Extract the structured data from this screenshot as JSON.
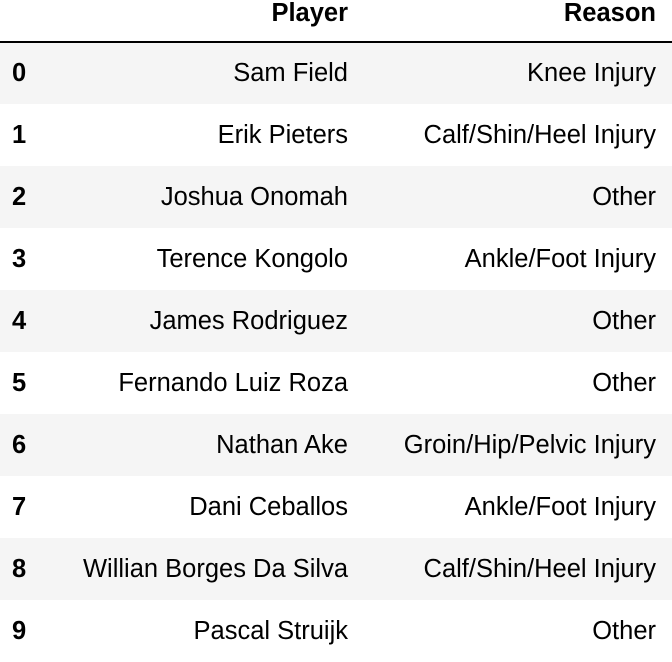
{
  "table": {
    "columns": [
      "Player",
      "Reason"
    ],
    "rows": [
      {
        "index": "0",
        "player": "Sam Field",
        "reason": "Knee Injury"
      },
      {
        "index": "1",
        "player": "Erik Pieters",
        "reason": "Calf/Shin/Heel Injury"
      },
      {
        "index": "2",
        "player": "Joshua Onomah",
        "reason": "Other"
      },
      {
        "index": "3",
        "player": "Terence Kongolo",
        "reason": "Ankle/Foot Injury"
      },
      {
        "index": "4",
        "player": "James Rodriguez",
        "reason": "Other"
      },
      {
        "index": "5",
        "player": "Fernando Luiz Roza",
        "reason": "Other"
      },
      {
        "index": "6",
        "player": "Nathan Ake",
        "reason": "Groin/Hip/Pelvic Injury"
      },
      {
        "index": "7",
        "player": "Dani Ceballos",
        "reason": "Ankle/Foot Injury"
      },
      {
        "index": "8",
        "player": "Willian Borges Da Silva",
        "reason": "Calf/Shin/Heel Injury"
      },
      {
        "index": "9",
        "player": "Pascal Struijk",
        "reason": "Other"
      }
    ]
  }
}
